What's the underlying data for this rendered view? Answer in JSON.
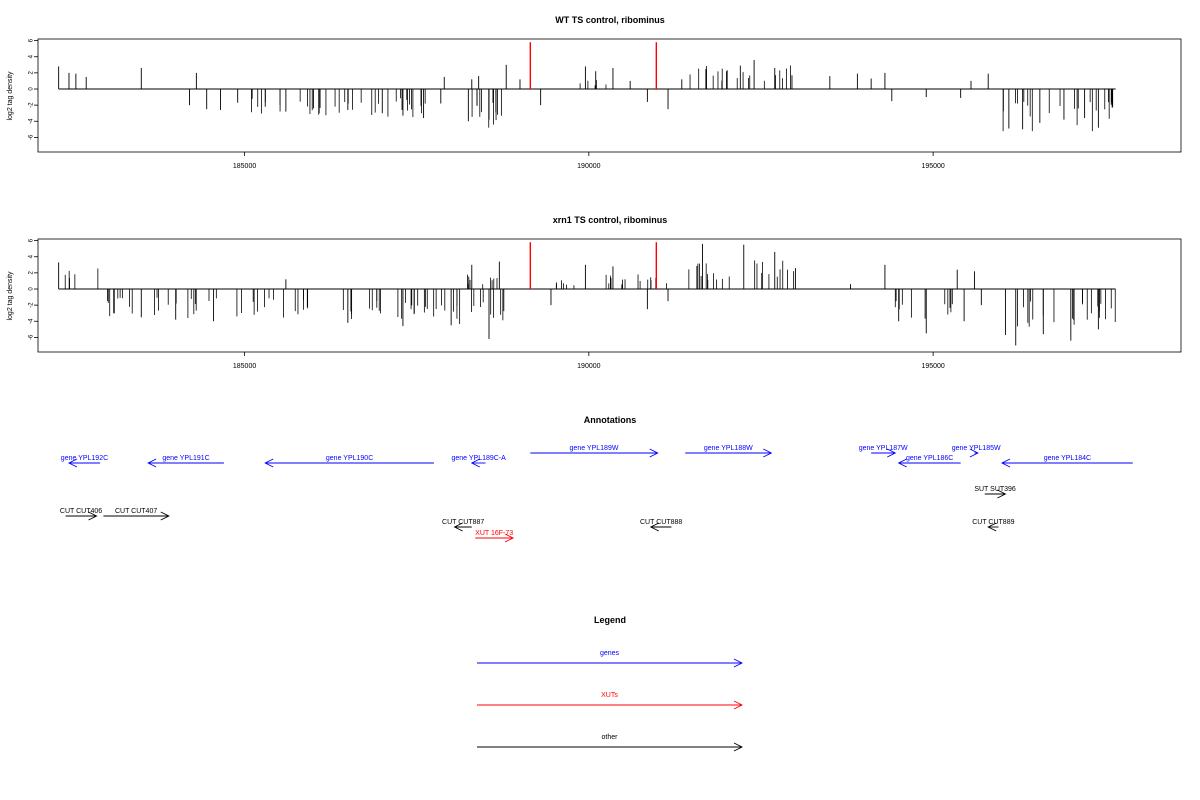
{
  "colors": {
    "gene": "#0000ff",
    "xut": "#ff0000",
    "other": "#000000",
    "highlight": "#ff0000"
  },
  "chart_data": [
    {
      "type": "bar",
      "title": "WT TS control, ribominus",
      "ylabel": "log2 tag density",
      "xlim": [
        182000,
        198000
      ],
      "ylim": [
        -7,
        6.5
      ],
      "yticks": [
        6,
        4,
        2,
        0,
        -2,
        -4,
        -6
      ],
      "xticks": [
        185000,
        190000,
        195000
      ],
      "xtick_labels": [
        "185000",
        "190000",
        "195000"
      ],
      "highlight_x": [
        189150,
        190980
      ],
      "highlight_y": 5.8,
      "bars": [
        [
          182300,
          2.8
        ],
        [
          182450,
          2.0
        ],
        [
          182550,
          1.9
        ],
        [
          182700,
          1.5
        ],
        [
          183500,
          2.6
        ],
        [
          184300,
          2.0
        ],
        [
          184200,
          -2.0
        ],
        [
          184450,
          -2.5
        ],
        [
          184650,
          -2.6
        ],
        [
          184900,
          -1.7
        ],
        [
          185300,
          -2.2
        ],
        [
          185600,
          -2.8
        ],
        [
          186000,
          -2.4
        ],
        [
          186500,
          -2.6
        ],
        [
          187000,
          -3.0
        ],
        [
          187300,
          -3.3
        ],
        [
          187600,
          -3.6
        ],
        [
          187850,
          -1.8
        ],
        [
          187900,
          1.5
        ],
        [
          188250,
          -4.0
        ],
        [
          188300,
          1.2
        ],
        [
          188400,
          1.6
        ],
        [
          188550,
          -3.8
        ],
        [
          188650,
          -2.9
        ],
        [
          188800,
          3.0
        ],
        [
          189000,
          1.2
        ],
        [
          189300,
          -2.0
        ],
        [
          189950,
          2.8
        ],
        [
          190100,
          2.2
        ],
        [
          190350,
          2.6
        ],
        [
          190600,
          1.0
        ],
        [
          190850,
          -1.6
        ],
        [
          191150,
          -2.5
        ],
        [
          191350,
          1.2
        ],
        [
          191700,
          2.5
        ],
        [
          192000,
          2.2
        ],
        [
          192200,
          2.9
        ],
        [
          192400,
          3.6
        ],
        [
          192700,
          2.6
        ],
        [
          192950,
          1.7
        ],
        [
          193500,
          1.6
        ],
        [
          193900,
          1.9
        ],
        [
          194100,
          1.3
        ],
        [
          194300,
          2.0
        ],
        [
          194400,
          -1.5
        ],
        [
          194900,
          -1.0
        ],
        [
          195400,
          -1.1
        ],
        [
          195550,
          1.0
        ],
        [
          195800,
          1.9
        ],
        [
          196100,
          -4.9
        ],
        [
          196300,
          -5.0
        ],
        [
          196550,
          -4.2
        ],
        [
          196900,
          -3.8
        ],
        [
          197200,
          -3.6
        ],
        [
          197400,
          -4.8
        ],
        [
          197600,
          -2.3
        ]
      ],
      "dense_ranges": [
        [
          185000,
          187900,
          -3.0,
          0.38,
          11
        ],
        [
          188200,
          188750,
          -4.0,
          0.6,
          12
        ],
        [
          189850,
          190300,
          1.0,
          0.3,
          13
        ],
        [
          191350,
          192950,
          2.5,
          0.35,
          14
        ],
        [
          196000,
          197650,
          -4.5,
          0.4,
          15
        ]
      ]
    },
    {
      "type": "bar",
      "title": "xrn1 TS control, ribominus",
      "ylabel": "log2 tag density",
      "xlim": [
        182000,
        198000
      ],
      "ylim": [
        -7,
        6.5
      ],
      "yticks": [
        6,
        4,
        2,
        0,
        -2,
        -4,
        -6
      ],
      "xticks": [
        185000,
        190000,
        195000
      ],
      "xtick_labels": [
        "185000",
        "190000",
        "195000"
      ],
      "highlight_x": [
        189150,
        190980
      ],
      "highlight_y": 5.8,
      "bars": [
        [
          182300,
          3.3
        ],
        [
          183100,
          -3.0
        ],
        [
          183500,
          -3.5
        ],
        [
          184000,
          -3.8
        ],
        [
          184550,
          -4.0
        ],
        [
          185600,
          1.2
        ],
        [
          186500,
          -4.2
        ],
        [
          187300,
          -4.6
        ],
        [
          188000,
          -4.5
        ],
        [
          188300,
          3.0
        ],
        [
          188550,
          -6.2
        ],
        [
          188700,
          3.4
        ],
        [
          189450,
          -2.0
        ],
        [
          189950,
          3.0
        ],
        [
          190350,
          2.8
        ],
        [
          190850,
          -2.5
        ],
        [
          191150,
          -1.5
        ],
        [
          191650,
          5.6
        ],
        [
          192250,
          5.5
        ],
        [
          192700,
          4.6
        ],
        [
          193000,
          2.6
        ],
        [
          193800,
          0.6
        ],
        [
          194300,
          3.0
        ],
        [
          194500,
          -4.0
        ],
        [
          194900,
          -5.5
        ],
        [
          195350,
          2.4
        ],
        [
          195450,
          -4.0
        ],
        [
          195600,
          2.2
        ],
        [
          195700,
          -2.0
        ],
        [
          196050,
          -5.7
        ],
        [
          196200,
          -7.0
        ],
        [
          196600,
          -5.6
        ],
        [
          197000,
          -6.4
        ],
        [
          197400,
          -5.0
        ]
      ],
      "dense_ranges": [
        [
          182300,
          182900,
          2.4,
          0.25,
          21
        ],
        [
          183000,
          184600,
          -3.0,
          0.4,
          22
        ],
        [
          184800,
          187950,
          -3.2,
          0.38,
          23
        ],
        [
          188000,
          188800,
          -4.0,
          0.5,
          24
        ],
        [
          188200,
          188850,
          1.5,
          0.4,
          25
        ],
        [
          189500,
          189900,
          1.0,
          0.45,
          26
        ],
        [
          190200,
          191200,
          1.5,
          0.45,
          27
        ],
        [
          191400,
          193000,
          3.0,
          0.42,
          28
        ],
        [
          194450,
          195300,
          -3.3,
          0.4,
          29
        ],
        [
          196000,
          197650,
          -4.3,
          0.4,
          30
        ]
      ]
    }
  ],
  "annotations": {
    "title": "Annotations",
    "items": [
      {
        "label": "gene YPL192C",
        "type": "gene",
        "x1": 182900,
        "x2": 182450,
        "row": 2
      },
      {
        "label": "gene YPL191C",
        "type": "gene",
        "x1": 184700,
        "x2": 183600,
        "row": 2
      },
      {
        "label": "gene YPL190C",
        "type": "gene",
        "x1": 187750,
        "x2": 185300,
        "row": 2
      },
      {
        "label": "gene YPL189C-A",
        "type": "gene",
        "x1": 188500,
        "x2": 188300,
        "row": 2
      },
      {
        "label": "gene YPL189W",
        "type": "gene",
        "x1": 189150,
        "x2": 191000,
        "row": 1
      },
      {
        "label": "gene YPL188W",
        "type": "gene",
        "x1": 191400,
        "x2": 192650,
        "row": 1
      },
      {
        "label": "gene YPL187W",
        "type": "gene",
        "x1": 194100,
        "x2": 194450,
        "row": 1
      },
      {
        "label": "gene YPL186C",
        "type": "gene",
        "x1": 195400,
        "x2": 194500,
        "row": 2
      },
      {
        "label": "gene YPL185W",
        "type": "gene",
        "x1": 195600,
        "x2": 195650,
        "row": 1
      },
      {
        "label": "gene YPL184C",
        "type": "gene",
        "x1": 197900,
        "x2": 196000,
        "row": 2
      },
      {
        "label": "SUT SUT396",
        "type": "other",
        "x1": 195750,
        "x2": 196050,
        "row": 3
      },
      {
        "label": "CUT CUT406",
        "type": "other",
        "x1": 182400,
        "x2": 182850,
        "row": 4
      },
      {
        "label": "CUT CUT407",
        "type": "other",
        "x1": 182950,
        "x2": 183900,
        "row": 4
      },
      {
        "label": "CUT CUT887",
        "type": "other",
        "x1": 188300,
        "x2": 188050,
        "row": 5
      },
      {
        "label": "XUT 16F-73",
        "type": "xut",
        "x1": 188350,
        "x2": 188900,
        "row": 6
      },
      {
        "label": "CUT CUT888",
        "type": "other",
        "x1": 191200,
        "x2": 190900,
        "row": 5
      },
      {
        "label": "CUT CUT889",
        "type": "other",
        "x1": 195950,
        "x2": 195800,
        "row": 5
      }
    ]
  },
  "legend": {
    "title": "Legend",
    "items": [
      {
        "label": "genes",
        "type": "gene"
      },
      {
        "label": "XUTs",
        "type": "xut"
      },
      {
        "label": "other",
        "type": "other"
      }
    ]
  }
}
